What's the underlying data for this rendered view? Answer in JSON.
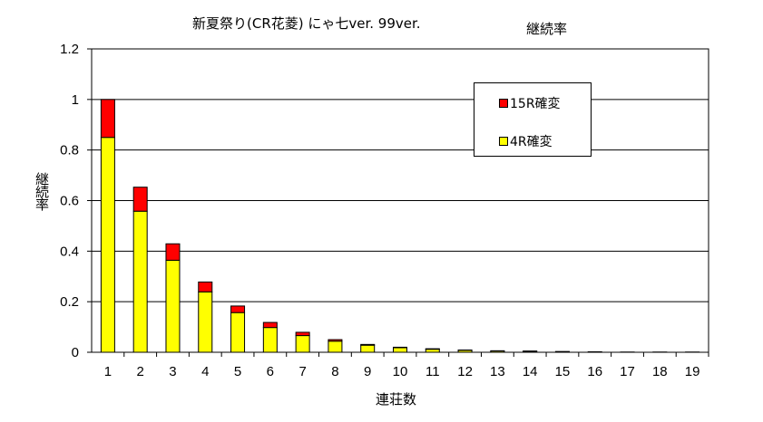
{
  "chart_data": {
    "type": "bar",
    "stacked": true,
    "title": "新夏祭り(CR花菱) にゃ七ver. 99ver.",
    "subtitle": "継続率",
    "xlabel": "連荘数",
    "ylabel": "継続率",
    "ylim": [
      0,
      1.2
    ],
    "yticks": [
      "0",
      "0.2",
      "0.4",
      "0.6",
      "0.8",
      "1",
      "1.2"
    ],
    "grid": true,
    "legend_position": "upper-right-inside",
    "categories": [
      "1",
      "2",
      "3",
      "4",
      "5",
      "6",
      "7",
      "8",
      "9",
      "10",
      "11",
      "12",
      "13",
      "14",
      "15",
      "16",
      "17",
      "18",
      "19"
    ],
    "series": [
      {
        "name": "4R確変",
        "color": "#ffff00",
        "values": [
          0.85,
          0.558,
          0.364,
          0.239,
          0.157,
          0.098,
          0.066,
          0.044,
          0.028,
          0.018,
          0.012,
          0.008,
          0.005,
          0.004,
          0.002,
          0.002,
          0.001,
          0.001,
          0.001
        ]
      },
      {
        "name": "15R確変",
        "color": "#ff0000",
        "values": [
          0.15,
          0.095,
          0.065,
          0.039,
          0.026,
          0.02,
          0.013,
          0.006,
          0.003,
          0.002,
          0.002,
          0.001,
          0.001,
          0.001,
          0.001,
          0.0,
          0.0,
          0.0,
          0.0
        ]
      }
    ]
  },
  "legend": {
    "items": [
      {
        "label": "15R確変",
        "color": "#ff0000"
      },
      {
        "label": "4R確変",
        "color": "#ffff00"
      }
    ]
  }
}
